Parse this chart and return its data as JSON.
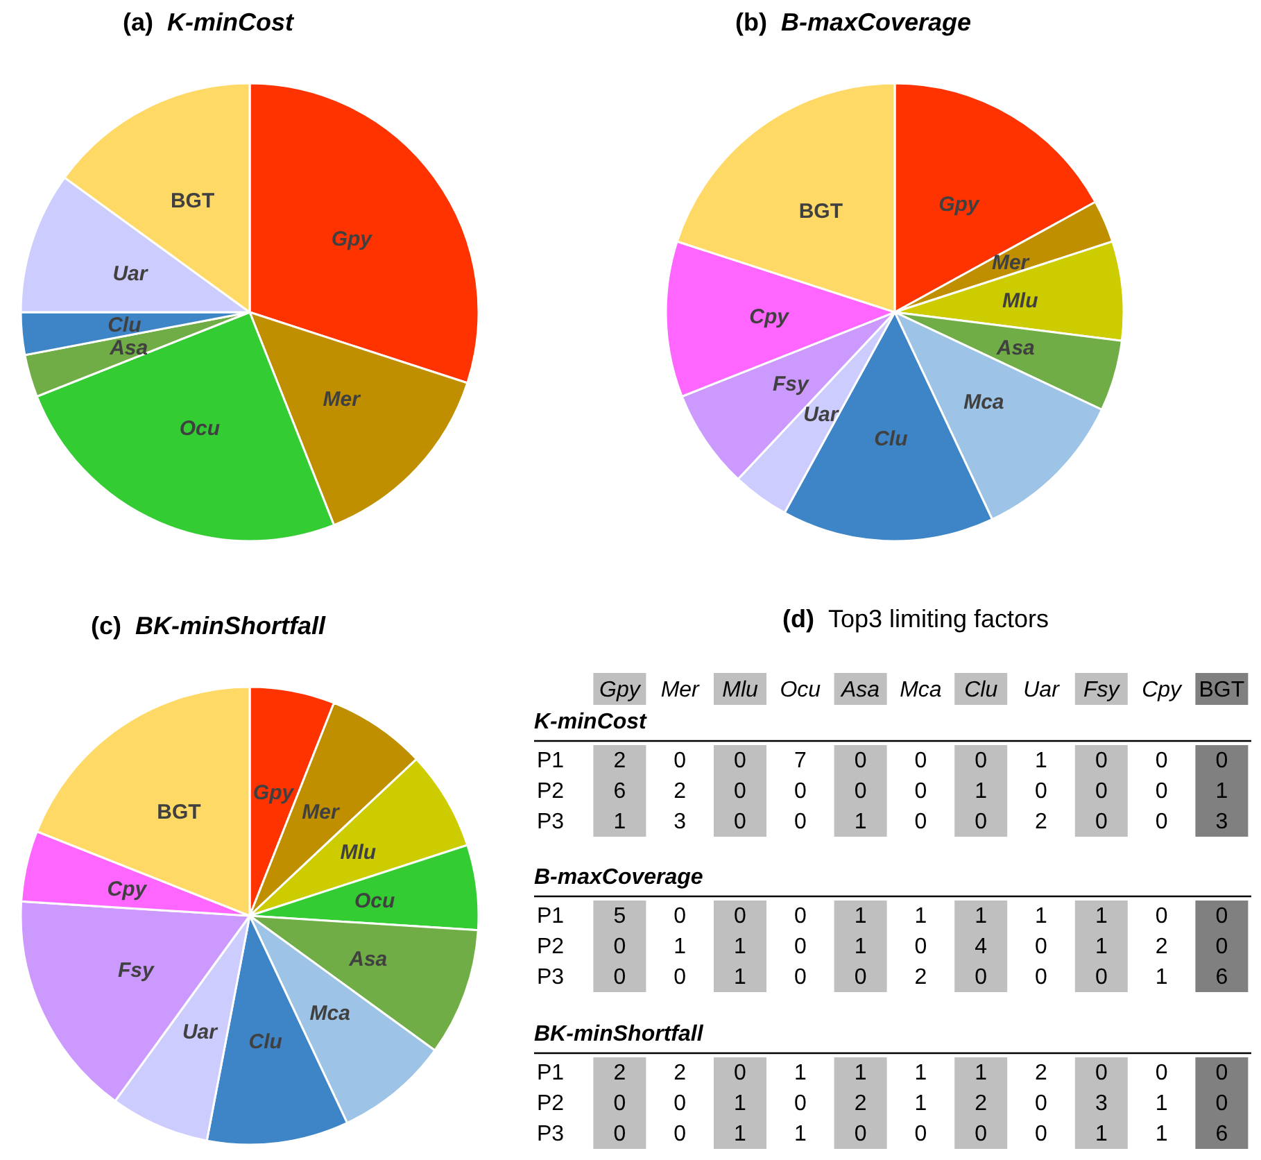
{
  "chart_data": [
    {
      "type": "pie",
      "title": "(a) K-minCost",
      "categories": [
        "Gpy",
        "Mer",
        "Ocu",
        "Asa",
        "Clu",
        "Uar",
        "BGT"
      ],
      "values": [
        30,
        14,
        25,
        3,
        3,
        10,
        15
      ],
      "colors": [
        "#ff3300",
        "#bf8f00",
        "#33cc33",
        "#70ad47",
        "#3d85c6",
        "#ccccff",
        "#ffd966"
      ],
      "legend": false
    },
    {
      "type": "pie",
      "title": "(b) B-maxCoverage",
      "categories": [
        "Gpy",
        "Mer",
        "Mlu",
        "Asa",
        "Mca",
        "Clu",
        "Uar",
        "Fsy",
        "Cpy",
        "BGT"
      ],
      "values": [
        17,
        3,
        7,
        5,
        11,
        15,
        4,
        7,
        11,
        20
      ],
      "colors": [
        "#ff3300",
        "#bf8f00",
        "#cccc00",
        "#70ad47",
        "#9dc3e6",
        "#3d85c6",
        "#ccccff",
        "#cc99ff",
        "#ff66ff",
        "#ffd966"
      ],
      "legend": false
    },
    {
      "type": "pie",
      "title": "(c) BK-minShortfall",
      "categories": [
        "Gpy",
        "Mer",
        "Mlu",
        "Ocu",
        "Asa",
        "Mca",
        "Clu",
        "Uar",
        "Fsy",
        "Cpy",
        "BGT"
      ],
      "values": [
        6,
        7,
        7,
        6,
        9,
        8,
        10,
        7,
        16,
        5,
        19
      ],
      "colors": [
        "#ff3300",
        "#bf8f00",
        "#cccc00",
        "#33cc33",
        "#70ad47",
        "#9dc3e6",
        "#3d85c6",
        "#ccccff",
        "#cc99ff",
        "#ff66ff",
        "#ffd966"
      ],
      "legend": false
    },
    {
      "type": "heatmap",
      "title": "(d) Top3 limiting factors",
      "subtitle": "K-minCost",
      "categories": [
        "Gpy",
        "Mer",
        "Mlu",
        "Ocu",
        "Asa",
        "Mca",
        "Clu",
        "Uar",
        "Fsy",
        "Cpy",
        "BGT"
      ],
      "y_categories": [
        "P1",
        "P2",
        "P3"
      ],
      "data_labels": true,
      "cells": [
        [
          2,
          0,
          0,
          7,
          0,
          0,
          0,
          1,
          0,
          0,
          0
        ],
        [
          6,
          2,
          0,
          0,
          0,
          0,
          1,
          0,
          0,
          0,
          1
        ],
        [
          1,
          3,
          0,
          0,
          1,
          0,
          0,
          2,
          0,
          0,
          3
        ]
      ]
    },
    {
      "type": "heatmap",
      "subtitle": "B-maxCoverage",
      "categories": [
        null,
        null,
        null,
        null,
        null,
        null,
        null,
        null,
        null,
        null,
        null
      ],
      "y_categories": [
        "P1",
        "P2",
        "P3"
      ],
      "data_labels": true,
      "tick_labels": "y",
      "cells": [
        [
          5,
          0,
          0,
          0,
          1,
          1,
          1,
          1,
          1,
          0,
          0
        ],
        [
          0,
          1,
          1,
          0,
          1,
          0,
          4,
          0,
          1,
          2,
          0
        ],
        [
          0,
          0,
          1,
          0,
          0,
          2,
          0,
          0,
          0,
          1,
          6
        ]
      ]
    },
    {
      "type": "heatmap",
      "subtitle": "BK-minShortfall",
      "categories": [
        null,
        null,
        null,
        null,
        null,
        null,
        null,
        null,
        null,
        null,
        null
      ],
      "y_categories": [
        "P1",
        "P2",
        "P3"
      ],
      "data_labels": true,
      "tick_labels": "y",
      "cells": [
        [
          2,
          2,
          0,
          1,
          1,
          1,
          1,
          2,
          0,
          0,
          0
        ],
        [
          0,
          0,
          1,
          0,
          2,
          1,
          2,
          0,
          3,
          1,
          0
        ],
        [
          0,
          0,
          1,
          1,
          0,
          0,
          0,
          0,
          1,
          1,
          6
        ]
      ]
    }
  ]
}
